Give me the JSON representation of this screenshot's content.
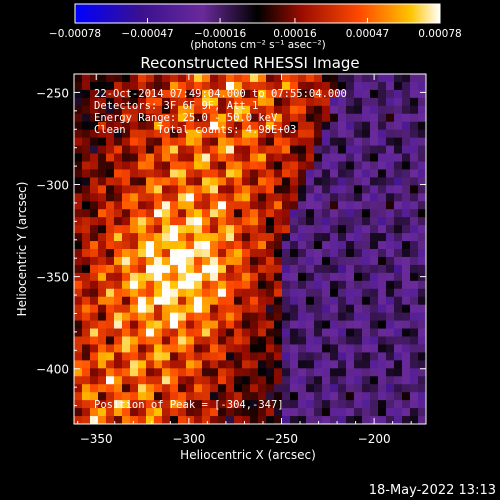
{
  "chart_data": {
    "type": "heatmap",
    "title": "Reconstructed RHESSI Image",
    "xlabel": "Heliocentric X (arcsec)",
    "ylabel": "Heliocentric Y (arcsec)",
    "xlim": [
      -362,
      -172
    ],
    "ylim": [
      -430,
      -240
    ],
    "x_ticks": [
      -350,
      -300,
      -250,
      -200
    ],
    "x_tick_labels": [
      "−350",
      "−300",
      "−250",
      "−200"
    ],
    "y_ticks": [
      -250,
      -300,
      -350,
      -400
    ],
    "y_tick_labels": [
      "−250",
      "−300",
      "−350",
      "−400"
    ],
    "colorbar": {
      "min": -0.00078,
      "max": 0.00078,
      "ticks": [
        -0.00078,
        -0.00047,
        -0.00016,
        0.00016,
        0.00047,
        0.00078
      ],
      "tick_labels": [
        "−0.00078",
        "−0.00047",
        "−0.00016",
        "0.00016",
        "0.00047",
        "0.00078"
      ],
      "units_label": "(photons cm⁻² s⁻¹ asec⁻²)",
      "colors": [
        "#0000ff",
        "#2a0060",
        "#5a2a9a",
        "#000000",
        "#b01000",
        "#ff4000",
        "#ffc000",
        "#ffffff"
      ]
    },
    "annotations": {
      "time_range": "22-Oct-2014 07:49:04.000 to 07:55:04.000",
      "detectors": "Detectors: 3F 6F 9F, Att 1",
      "energy": "Energy Range: 25.0 - 50.0 keV",
      "method": "Clean     Total counts: 4.98E+03",
      "peak": "Position of Peak = [-304,-347]"
    },
    "grid": false
  },
  "footer_timestamp": "18-May-2022 13:13"
}
